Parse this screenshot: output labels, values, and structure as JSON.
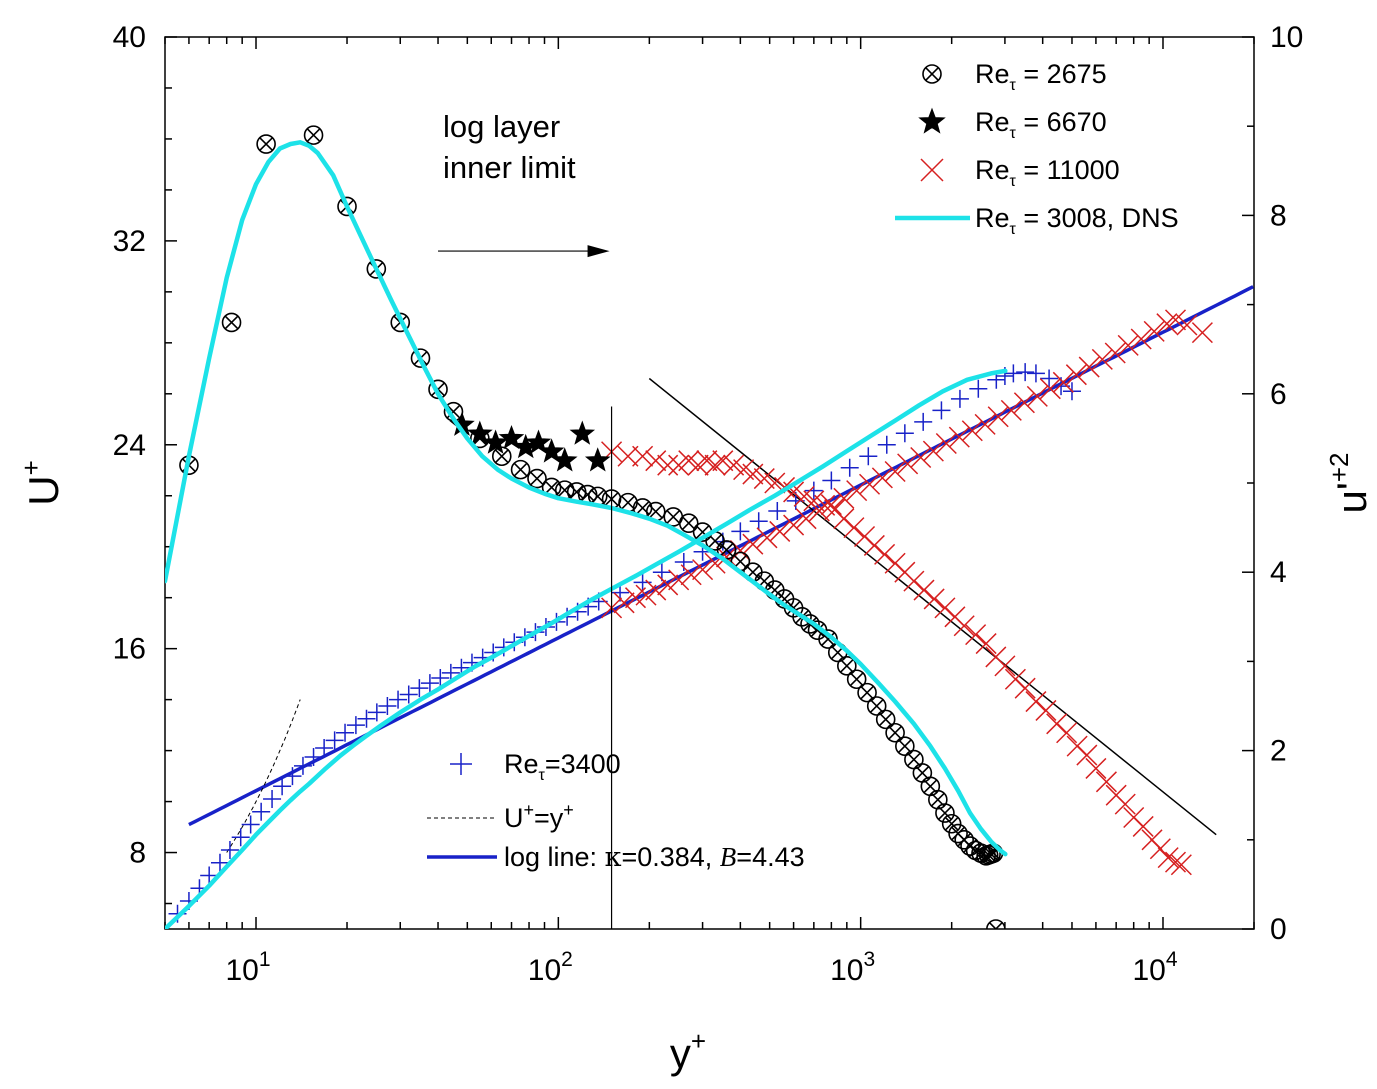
{
  "chart_data": {
    "type": "scatter",
    "x_axis": {
      "label": "y",
      "label_sup": "+",
      "scale": "log",
      "range": [
        5,
        20000
      ],
      "tick_labels": [
        {
          "value": 10,
          "base": "10",
          "exp": "1"
        },
        {
          "value": 100,
          "base": "10",
          "exp": "2"
        },
        {
          "value": 1000,
          "base": "10",
          "exp": "3"
        },
        {
          "value": 10000,
          "base": "10",
          "exp": "4"
        }
      ]
    },
    "y_left": {
      "label": "U",
      "label_sup": "+",
      "range": [
        5,
        40
      ],
      "ticks": [
        8,
        16,
        24,
        32,
        40
      ],
      "tick_labels": [
        "8",
        "16",
        "24",
        "32",
        "40"
      ]
    },
    "y_right": {
      "label": "u'",
      "label_sup": "+2",
      "range": [
        0,
        10
      ],
      "ticks": [
        0,
        2,
        4,
        6,
        8,
        10
      ],
      "tick_labels": [
        "0",
        "2",
        "4",
        "6",
        "8",
        "10"
      ]
    },
    "annotation": {
      "line1": "log layer",
      "line2": "inner limit",
      "x": 150
    },
    "legend_top": [
      {
        "id": "re2675",
        "prefix": "Re",
        "sub": "τ",
        "text": " = 2675"
      },
      {
        "id": "re6670",
        "prefix": "Re",
        "sub": "τ",
        "text": " = 6670"
      },
      {
        "id": "re11000",
        "prefix": "Re",
        "sub": "τ",
        "text": " = 11000"
      },
      {
        "id": "dns",
        "prefix": "Re",
        "sub": "τ",
        "text": " = 3008, DNS"
      }
    ],
    "legend_bottom": {
      "re3400": {
        "prefix": "Re",
        "sub": "τ",
        "text": "=3400"
      },
      "linear": {
        "u": "U",
        "sup1": "+",
        "eq": "=y",
        "sup2": "+"
      },
      "logline": {
        "prefix": "log line: ",
        "kappa": "κ",
        "kappa_val": "=0.384, ",
        "b": "B",
        "b_val": "=4.43"
      }
    },
    "series": {
      "re2675_urms": {
        "name": "Re_tau = 2675",
        "axis": "right",
        "marker": "circle-x",
        "x": [
          6,
          8.3,
          10.8,
          15.5,
          20,
          25,
          30,
          35,
          40,
          45,
          55,
          65,
          75,
          85,
          95,
          105,
          115,
          125,
          135,
          150,
          170,
          190,
          210,
          240,
          270,
          300,
          330,
          360,
          400,
          440,
          480,
          520,
          560,
          600,
          640,
          680,
          720,
          780,
          840,
          900,
          970,
          1050,
          1130,
          1210,
          1300,
          1400,
          1500,
          1600,
          1700,
          1800,
          1900,
          2000,
          2100,
          2200,
          2300,
          2400,
          2500,
          2600,
          2650,
          2700,
          2750
        ],
        "y": [
          5.2,
          6.8,
          8.8,
          8.9,
          8.1,
          7.4,
          6.8,
          6.4,
          6.05,
          5.8,
          5.5,
          5.3,
          5.15,
          5.05,
          4.95,
          4.92,
          4.9,
          4.87,
          4.85,
          4.82,
          4.78,
          4.72,
          4.68,
          4.62,
          4.55,
          4.45,
          4.35,
          4.25,
          4.12,
          4.0,
          3.9,
          3.8,
          3.7,
          3.6,
          3.5,
          3.42,
          3.35,
          3.25,
          3.1,
          2.95,
          2.8,
          2.65,
          2.5,
          2.35,
          2.2,
          2.05,
          1.9,
          1.75,
          1.6,
          1.45,
          1.3,
          1.18,
          1.07,
          1.0,
          0.93,
          0.88,
          0.85,
          0.82,
          0.83,
          0.84,
          0.85
        ]
      },
      "re2675_outlier": {
        "name": "Re_tau = 2675",
        "axis": "right",
        "marker": "circle-x",
        "x": [
          2800
        ],
        "y": [
          0.0
        ]
      },
      "re6670_urms": {
        "name": "Re_tau = 6670",
        "axis": "right",
        "marker": "star",
        "x": [
          48,
          55,
          62,
          70,
          78,
          86,
          95,
          105,
          120,
          135
        ],
        "y": [
          5.65,
          5.55,
          5.45,
          5.5,
          5.4,
          5.45,
          5.35,
          5.25,
          5.55,
          5.25
        ]
      },
      "re11000_urms": {
        "name": "Re_tau = 11000",
        "axis": "right",
        "marker": "x",
        "x": [
          150,
          170,
          190,
          210,
          230,
          250,
          270,
          290,
          310,
          330,
          350,
          380,
          410,
          440,
          480,
          520,
          560,
          600,
          650,
          700,
          760,
          820,
          880,
          950,
          1030,
          1110,
          1200,
          1300,
          1400,
          1500,
          1620,
          1750,
          1900,
          2050,
          2200,
          2400,
          2600,
          2800,
          3000,
          3250,
          3500,
          3800,
          4100,
          4450,
          4800,
          5200,
          5600,
          6000,
          6500,
          7000,
          7500,
          8000,
          8600,
          9200,
          9800,
          10400,
          11000,
          11500
        ],
        "y": [
          5.35,
          5.3,
          5.3,
          5.25,
          5.2,
          5.2,
          5.25,
          5.2,
          5.25,
          5.2,
          5.25,
          5.2,
          5.15,
          5.1,
          5.05,
          5.0,
          4.95,
          4.9,
          4.85,
          4.8,
          4.75,
          4.7,
          4.6,
          4.5,
          4.4,
          4.3,
          4.2,
          4.1,
          4.0,
          3.9,
          3.8,
          3.7,
          3.6,
          3.5,
          3.4,
          3.3,
          3.2,
          3.05,
          2.95,
          2.8,
          2.7,
          2.55,
          2.45,
          2.3,
          2.2,
          2.05,
          1.95,
          1.8,
          1.65,
          1.5,
          1.4,
          1.25,
          1.15,
          1.0,
          0.9,
          0.8,
          0.75,
          0.72
        ]
      },
      "re11000_U": {
        "name": "Re_tau = 11000",
        "axis": "left",
        "marker": "x",
        "x": [
          150,
          165,
          180,
          195,
          210,
          230,
          250,
          275,
          300,
          330,
          360,
          400,
          440,
          490,
          540,
          600,
          660,
          730,
          800,
          880,
          970,
          1070,
          1180,
          1300,
          1430,
          1580,
          1740,
          1920,
          2120,
          2340,
          2580,
          2850,
          3150,
          3480,
          3840,
          4240,
          4680,
          5170,
          5700,
          6300,
          6950,
          7670,
          8470,
          9350,
          10300,
          11000,
          12000,
          13500
        ],
        "y": [
          17.6,
          17.8,
          18.0,
          18.1,
          18.3,
          18.5,
          18.7,
          18.9,
          19.1,
          19.35,
          19.6,
          19.85,
          20.1,
          20.35,
          20.6,
          20.85,
          21.1,
          21.4,
          21.65,
          21.9,
          22.2,
          22.45,
          22.7,
          22.95,
          23.25,
          23.5,
          23.75,
          24.05,
          24.3,
          24.55,
          24.8,
          25.1,
          25.35,
          25.65,
          25.9,
          26.2,
          26.45,
          26.75,
          27.05,
          27.35,
          27.6,
          27.9,
          28.15,
          28.45,
          28.75,
          28.9,
          28.7,
          28.4
        ]
      },
      "re3400_U": {
        "name": "Re_tau = 3400",
        "axis": "left",
        "marker": "plus",
        "x": [
          5.5,
          6,
          6.5,
          7,
          7.6,
          8.2,
          8.9,
          9.6,
          10.4,
          11.3,
          12.2,
          13.2,
          14.3,
          15.5,
          16.8,
          18.2,
          19.7,
          21.4,
          23.2,
          25.1,
          27.2,
          29.5,
          32,
          34.7,
          37.6,
          40.7,
          44.1,
          47.8,
          51.8,
          56.2,
          60.9,
          66,
          71.5,
          77.5,
          84,
          91,
          98.6,
          106.9,
          115.8,
          125.5,
          136,
          160,
          190,
          220,
          260,
          300,
          350,
          400,
          460,
          530,
          610,
          700,
          800,
          920,
          1060,
          1220,
          1400,
          1610,
          1850,
          2130,
          2450,
          2810,
          3000,
          3200,
          3500,
          3800,
          4200,
          4600,
          5000
        ],
        "y": [
          5.6,
          6.1,
          6.6,
          7.1,
          7.6,
          8.1,
          8.6,
          9.1,
          9.6,
          10.1,
          10.6,
          11.0,
          11.4,
          11.75,
          12.1,
          12.4,
          12.7,
          13.0,
          13.25,
          13.5,
          13.75,
          14.0,
          14.2,
          14.45,
          14.65,
          14.85,
          15.05,
          15.25,
          15.45,
          15.65,
          15.85,
          16.05,
          16.25,
          16.45,
          16.65,
          16.85,
          17.05,
          17.25,
          17.45,
          17.65,
          17.85,
          18.2,
          18.6,
          19.0,
          19.4,
          19.8,
          20.2,
          20.6,
          21.0,
          21.4,
          21.8,
          22.2,
          22.6,
          23.1,
          23.55,
          24.0,
          24.45,
          24.9,
          25.35,
          25.8,
          26.2,
          26.55,
          26.7,
          26.8,
          26.85,
          26.8,
          26.6,
          26.3,
          26.1
        ]
      }
    },
    "lines": {
      "dns_urms": {
        "name": "Re_tau = 3008, DNS",
        "axis": "right",
        "color": "#1de2e8",
        "x": [
          5,
          6,
          7,
          8,
          9,
          10,
          11,
          12,
          13,
          14,
          15,
          16,
          18,
          20,
          22,
          25,
          28,
          32,
          36,
          40,
          45,
          50,
          56,
          63,
          70,
          80,
          90,
          100,
          115,
          130,
          150,
          175,
          200,
          230,
          260,
          300,
          350,
          400,
          450,
          500,
          560,
          630,
          700,
          800,
          900,
          1000,
          1150,
          1300,
          1500,
          1700,
          1900,
          2100,
          2300,
          2500,
          2700,
          2900,
          3008
        ],
        "y": [
          3.9,
          5.3,
          6.4,
          7.3,
          7.95,
          8.35,
          8.6,
          8.75,
          8.8,
          8.82,
          8.78,
          8.7,
          8.45,
          8.1,
          7.8,
          7.4,
          7.05,
          6.65,
          6.3,
          6.0,
          5.72,
          5.5,
          5.3,
          5.15,
          5.05,
          4.95,
          4.88,
          4.83,
          4.79,
          4.76,
          4.72,
          4.66,
          4.6,
          4.52,
          4.42,
          4.3,
          4.15,
          4.0,
          3.87,
          3.75,
          3.63,
          3.52,
          3.42,
          3.27,
          3.12,
          2.97,
          2.75,
          2.55,
          2.3,
          2.05,
          1.8,
          1.55,
          1.3,
          1.12,
          0.98,
          0.88,
          0.84
        ]
      },
      "dns_U": {
        "name": "Re_tau = 3008, DNS",
        "axis": "left",
        "color": "#1de2e8",
        "x": [
          5,
          6,
          7,
          8,
          9,
          10,
          11,
          12,
          13,
          14,
          15,
          17,
          19,
          21,
          23,
          26,
          30,
          35,
          40,
          46,
          53,
          60,
          70,
          80,
          95,
          110,
          130,
          150,
          180,
          210,
          250,
          300,
          360,
          430,
          520,
          620,
          750,
          900,
          1080,
          1300,
          1560,
          1870,
          2250,
          2700,
          3008
        ],
        "y": [
          5.0,
          5.9,
          6.7,
          7.45,
          8.1,
          8.7,
          9.2,
          9.65,
          10.05,
          10.4,
          10.7,
          11.3,
          11.8,
          12.2,
          12.55,
          13.0,
          13.5,
          14.0,
          14.4,
          14.85,
          15.3,
          15.65,
          16.1,
          16.5,
          17.0,
          17.45,
          17.95,
          18.35,
          18.85,
          19.3,
          19.8,
          20.35,
          20.9,
          21.45,
          22.0,
          22.55,
          23.15,
          23.75,
          24.35,
          24.95,
          25.55,
          26.1,
          26.55,
          26.8,
          26.9
        ]
      },
      "log_line": {
        "name": "log line",
        "axis": "left",
        "color": "#1822c8",
        "kappa": 0.384,
        "B": 4.43,
        "x_range": [
          6,
          20000
        ]
      },
      "linear_line": {
        "name": "U+=y+",
        "axis": "left",
        "color": "#000",
        "dashed": true,
        "x_range": [
          8,
          14
        ]
      },
      "annot_vertical": {
        "axis": "left",
        "x": 150,
        "y_range": [
          5,
          25.5
        ]
      },
      "annot_arrow": {
        "axis": "left",
        "x_range": [
          40,
          150
        ],
        "y": 31.6
      },
      "slope_line": {
        "axis": "left",
        "x_points": [
          200,
          15000
        ],
        "y_points": [
          26.6,
          8.7
        ]
      }
    }
  }
}
